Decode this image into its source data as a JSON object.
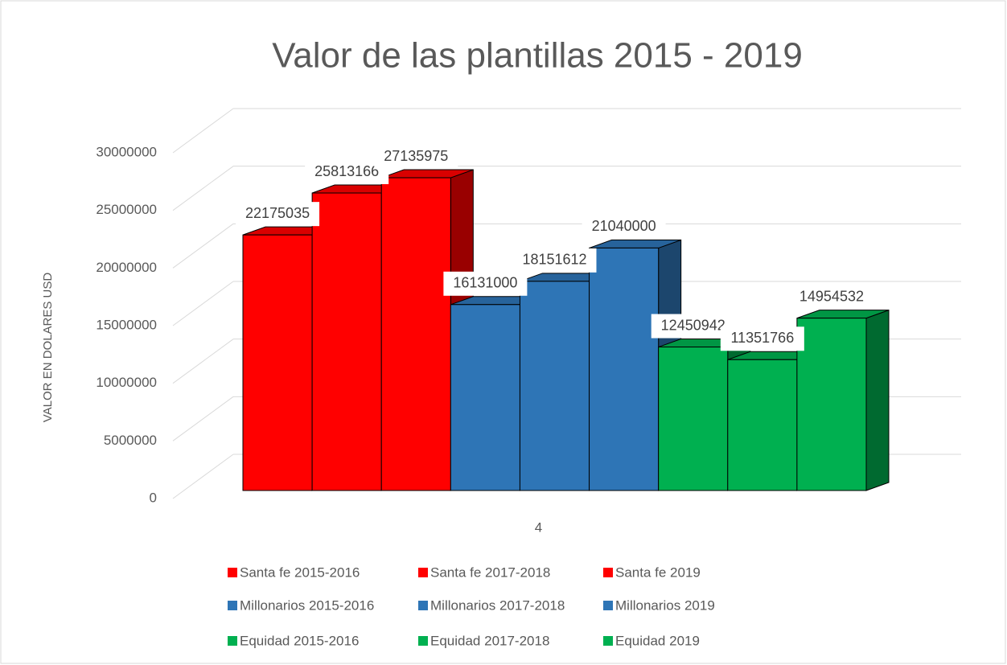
{
  "chart_data": {
    "type": "bar",
    "title": "Valor de las plantillas 2015 - 2019",
    "y_label": "VALOR EN DOLARES USD",
    "categories": [
      "4"
    ],
    "series": [
      {
        "name": "Santa fe 2015-2016",
        "color": "#ff0000",
        "values": [
          22175035
        ]
      },
      {
        "name": "Santa fe 2017-2018",
        "color": "#ff0000",
        "values": [
          25813166
        ]
      },
      {
        "name": "Santa fe 2019",
        "color": "#ff0000",
        "values": [
          27135975
        ]
      },
      {
        "name": "Millonarios 2015-2016",
        "color": "#2e75b6",
        "values": [
          16131000
        ]
      },
      {
        "name": "Millonarios 2017-2018",
        "color": "#2e75b6",
        "values": [
          18151612
        ]
      },
      {
        "name": "Millonarios 2019",
        "color": "#2e75b6",
        "values": [
          21040000
        ]
      },
      {
        "name": "Equidad 2015-2016",
        "color": "#00b050",
        "values": [
          12450942
        ]
      },
      {
        "name": "Equidad 2017-2018",
        "color": "#00b050",
        "values": [
          11351766
        ]
      },
      {
        "name": "Equidad 2019",
        "color": "#00b050",
        "values": [
          14954532
        ]
      }
    ],
    "ylim": [
      0,
      30000000
    ],
    "yticks": [
      0,
      5000000,
      10000000,
      15000000,
      20000000,
      25000000,
      30000000
    ],
    "grid": true,
    "legend": "bottom"
  }
}
